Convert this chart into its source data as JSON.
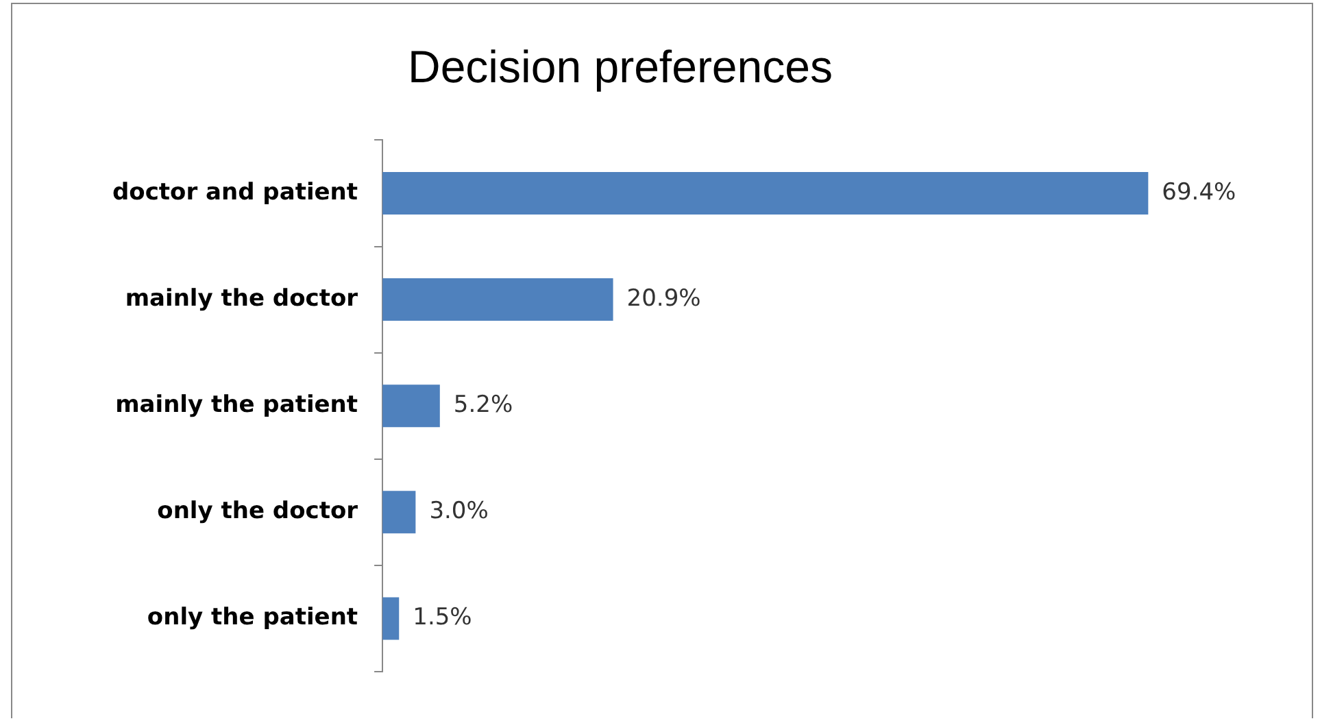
{
  "chart_data": {
    "type": "bar",
    "orientation": "horizontal",
    "title": "Decision preferences",
    "categories": [
      "doctor and patient",
      "mainly the doctor",
      "mainly the patient",
      "only the doctor",
      "only the patient"
    ],
    "values": [
      69.4,
      20.9,
      5.2,
      3.0,
      1.5
    ],
    "value_labels": [
      "69.4%",
      "20.9%",
      "5.2%",
      "3.0%",
      "1.5%"
    ],
    "color": "#4f81bd",
    "grid": false,
    "legend": false,
    "tick_labels": "y"
  }
}
